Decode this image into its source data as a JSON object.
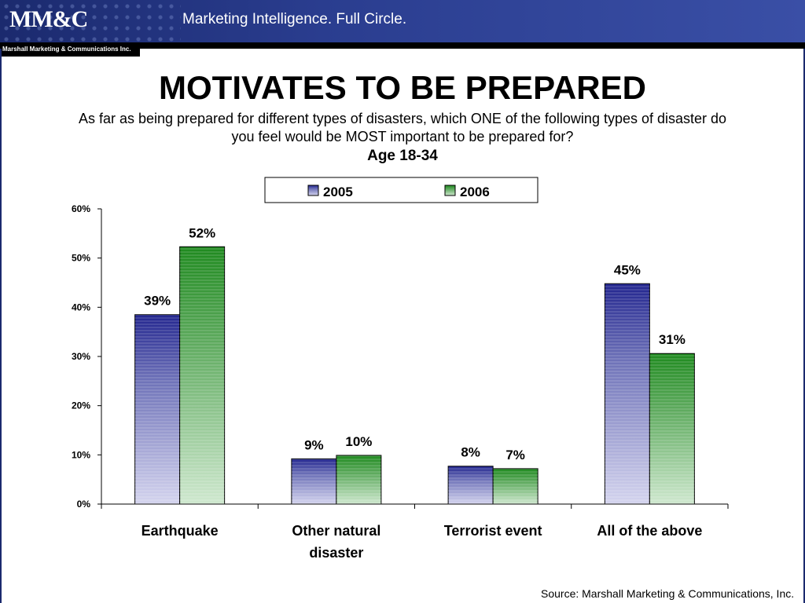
{
  "header": {
    "logo_text": "MM&C",
    "tagline": "Marketing Intelligence. Full Circle.",
    "company": "Marshall Marketing & Communications Inc."
  },
  "slide": {
    "title": "MOTIVATES TO BE PREPARED",
    "question": "As far as being prepared for different types of disasters, which ONE of the following types of disaster do you feel would be MOST important to be prepared for?",
    "age_group": "Age 18-34",
    "source": "Source:  Marshall Marketing & Communications, Inc."
  },
  "colors": {
    "series_2005": "#2a2e96",
    "series_2006": "#2e8a2e",
    "header_bg": "#1b2a6e"
  },
  "chart_data": {
    "type": "bar",
    "categories": [
      [
        "Earthquake"
      ],
      [
        "Other natural",
        "disaster"
      ],
      [
        "Terrorist event"
      ],
      [
        "All of the above"
      ]
    ],
    "series": [
      {
        "name": "2005",
        "values": [
          38.5,
          9.2,
          7.7,
          44.8
        ],
        "labels": [
          "39%",
          "9%",
          "8%",
          "45%"
        ]
      },
      {
        "name": "2006",
        "values": [
          52.3,
          9.9,
          7.2,
          30.6
        ],
        "labels": [
          "52%",
          "10%",
          "7%",
          "31%"
        ]
      }
    ],
    "ylim": [
      0,
      60
    ],
    "yticks": [
      "0%",
      "10%",
      "20%",
      "30%",
      "40%",
      "50%",
      "60%"
    ],
    "legend_position": "top-center",
    "grid": false
  }
}
